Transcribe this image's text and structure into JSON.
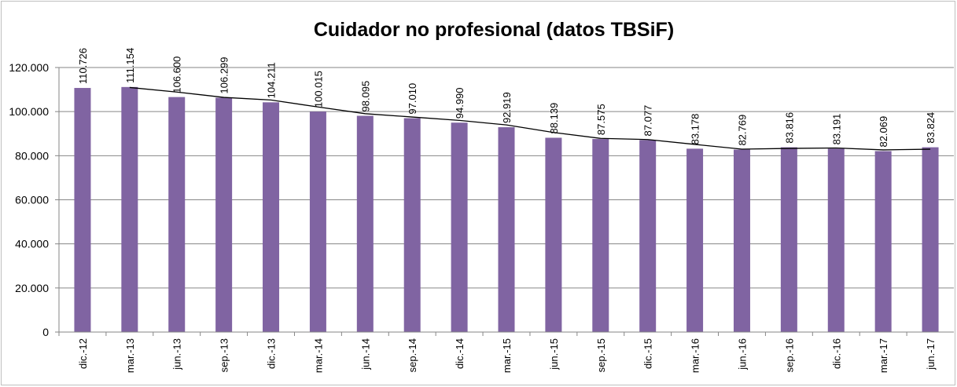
{
  "chart_data": {
    "type": "bar",
    "title": "Cuidador no profesional (datos TBSiF)",
    "categories": [
      "dic.-12",
      "mar.-13",
      "jun.-13",
      "sep.-13",
      "dic.-13",
      "mar.-14",
      "jun.-14",
      "sep.-14",
      "dic.-14",
      "mar.-15",
      "jun.-15",
      "sep.-15",
      "dic.-15",
      "mar.-16",
      "jun.-16",
      "sep.-16",
      "dic.-16",
      "mar.-17",
      "jun.-17"
    ],
    "values": [
      110726,
      111154,
      106600,
      106299,
      104211,
      100015,
      98095,
      97010,
      94990,
      92919,
      88139,
      87575,
      87077,
      83178,
      82769,
      83816,
      83191,
      82069,
      83824
    ],
    "value_labels": [
      "110.726",
      "111.154",
      "106.600",
      "106.299",
      "104.211",
      "100.015",
      "98.095",
      "97.010",
      "94.990",
      "92.919",
      "88.139",
      "87.575",
      "87.077",
      "83.178",
      "82.769",
      "83.816",
      "83.191",
      "82.069",
      "83.824"
    ],
    "color": "#8064a2",
    "trendline": {
      "type": "moving_average",
      "period": 2,
      "color": "#000000"
    },
    "ylim": [
      0,
      120000
    ],
    "yticks": [
      0,
      {
        "value": 20000,
        "label": "20.000"
      },
      {
        "value": 40000,
        "label": "40.000"
      },
      {
        "value": 60000,
        "label": "60.000"
      },
      {
        "value": 80000,
        "label": "80.000"
      },
      {
        "value": 100000,
        "label": "100.000"
      },
      {
        "value": 120000,
        "label": "120.000"
      }
    ],
    "grid": true
  }
}
